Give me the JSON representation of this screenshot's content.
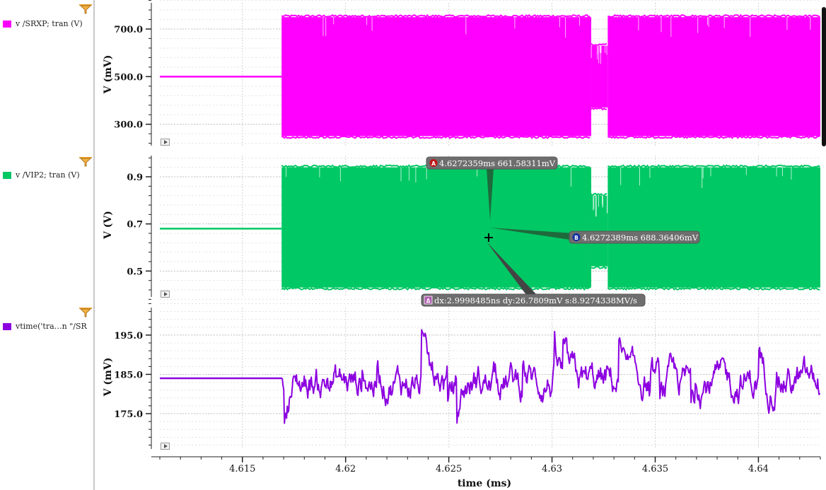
{
  "legend": {
    "items": [
      {
        "label": "v /SRXP; tran (V)",
        "color": "#ff00ff"
      },
      {
        "label": "v /VIP2; tran (V)",
        "color": "#00c864"
      },
      {
        "label": "vtime('tra…n \"/SR",
        "color": "#8c00e0"
      }
    ]
  },
  "markers": {
    "a": {
      "badge": "A",
      "text": "4.6272359ms 661.58311mV"
    },
    "b": {
      "badge": "B",
      "text": "4.6272389ms 688.36406mV"
    },
    "delta": {
      "badge": "Δ",
      "text": "dx:2.9998485ns dy:26.7809mV s:8.9274338MV/s"
    }
  },
  "chart_data": {
    "type": "line",
    "xlabel": "time (ms)",
    "xlim": [
      4.611,
      4.643
    ],
    "xticks": [
      4.615,
      4.62,
      4.625,
      4.63,
      4.635,
      4.64
    ],
    "xtick_labels": [
      "4.615",
      "4.62",
      "4.625",
      "4.63",
      "4.635",
      "4.64"
    ],
    "grid": true,
    "panels": [
      {
        "name": "v /SRXP; tran (V)",
        "ylabel": "V (mV)",
        "color": "#ff00ff",
        "ylim": [
          210,
          810
        ],
        "yticks": [
          300,
          500,
          700
        ],
        "ytick_labels": [
          "300.0",
          "500.0",
          "700.0"
        ],
        "flat": {
          "x": [
            4.611,
            4.6169
          ],
          "y": 500
        },
        "bands": [
          {
            "x0": 4.6169,
            "x1": 4.6319,
            "ymin": 250,
            "ymax": 750
          },
          {
            "x0": 4.6319,
            "x1": 4.6327,
            "ymin": 370,
            "ymax": 630
          },
          {
            "x0": 4.6327,
            "x1": 4.643,
            "ymin": 250,
            "ymax": 750
          }
        ]
      },
      {
        "name": "v /VIP2; tran (V)",
        "ylabel": "V (V)",
        "color": "#00c864",
        "ylim": [
          0.39,
          0.99
        ],
        "yticks": [
          0.5,
          0.7,
          0.9
        ],
        "ytick_labels": [
          "0.5",
          "0.7",
          "0.9"
        ],
        "flat": {
          "x": [
            4.611,
            4.6169
          ],
          "y": 0.68
        },
        "bands": [
          {
            "x0": 4.6169,
            "x1": 4.6319,
            "ymin": 0.43,
            "ymax": 0.94
          },
          {
            "x0": 4.6319,
            "x1": 4.6327,
            "ymin": 0.52,
            "ymax": 0.82
          },
          {
            "x0": 4.6327,
            "x1": 4.643,
            "ymin": 0.43,
            "ymax": 0.94
          }
        ]
      },
      {
        "name": "vtime('tra…n \"/SR",
        "ylabel": "V (mV)",
        "color": "#8c00e0",
        "ylim": [
          166,
          202
        ],
        "yticks": [
          175,
          185,
          195
        ],
        "ytick_labels": [
          "175.0",
          "185.0",
          "195.0"
        ],
        "flat": {
          "x": [
            4.611,
            4.6169
          ],
          "y": 184
        },
        "noise": {
          "x0": 4.6169,
          "x1": 4.643,
          "center": 183,
          "min": 171,
          "max": 198
        }
      }
    ]
  }
}
